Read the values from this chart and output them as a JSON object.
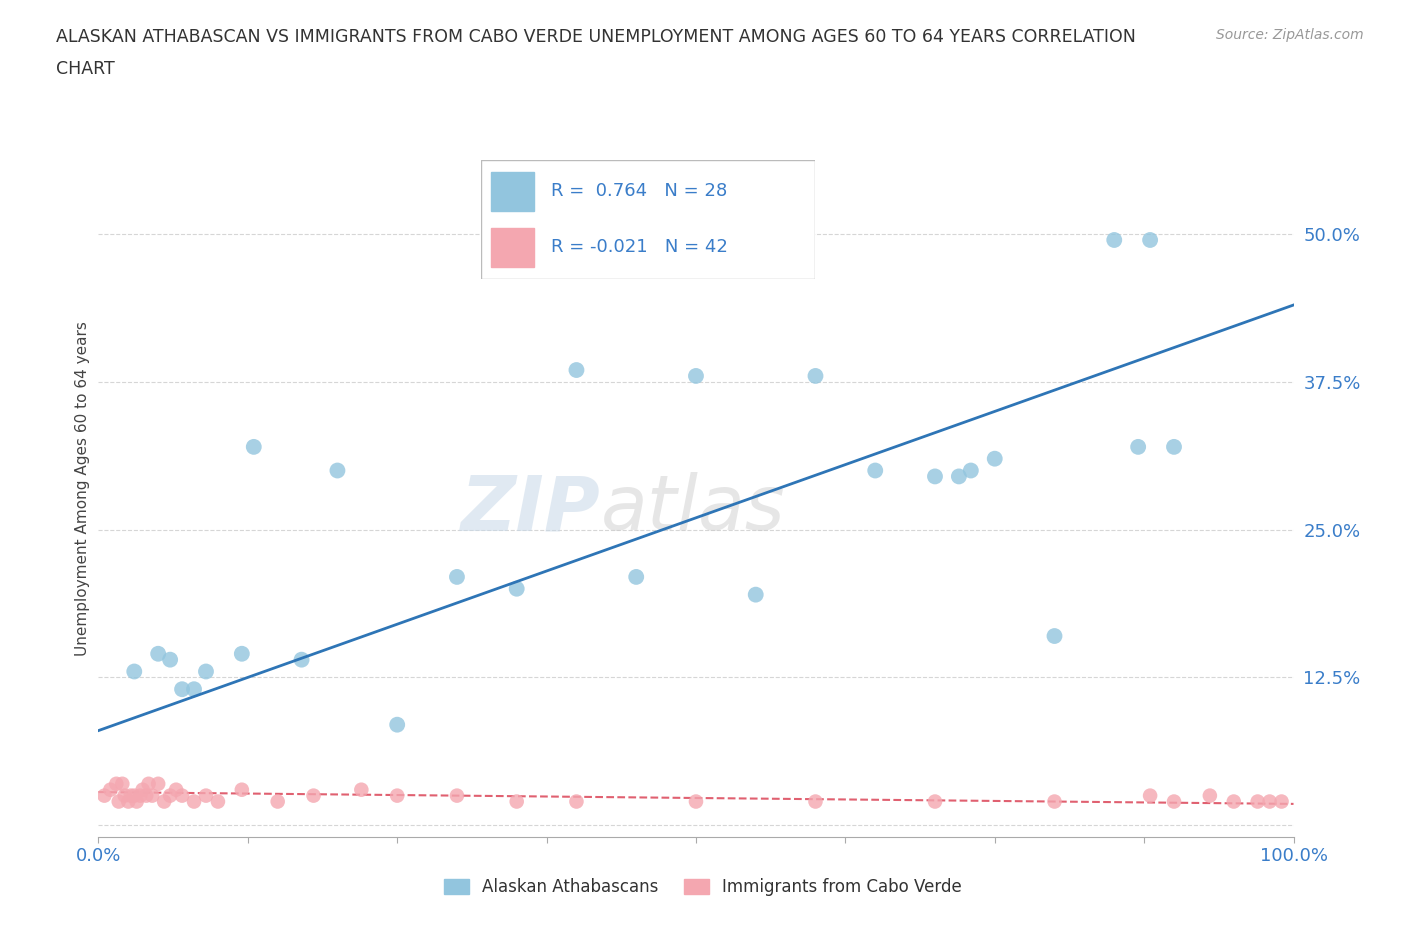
{
  "title_line1": "ALASKAN ATHABASCAN VS IMMIGRANTS FROM CABO VERDE UNEMPLOYMENT AMONG AGES 60 TO 64 YEARS CORRELATION",
  "title_line2": "CHART",
  "source": "Source: ZipAtlas.com",
  "ylabel": "Unemployment Among Ages 60 to 64 years",
  "xlim": [
    0.0,
    1.0
  ],
  "ylim": [
    -0.01,
    0.58
  ],
  "xticks": [
    0.0,
    0.125,
    0.25,
    0.375,
    0.5,
    0.625,
    0.75,
    0.875,
    1.0
  ],
  "yticks": [
    0.0,
    0.125,
    0.25,
    0.375,
    0.5
  ],
  "yticklabels": [
    "",
    "12.5%",
    "25.0%",
    "37.5%",
    "50.0%"
  ],
  "blue_color": "#92C5DE",
  "pink_color": "#F4A7B0",
  "trend_blue": "#2E75B6",
  "trend_pink": "#E06070",
  "watermark_zip": "ZIP",
  "watermark_atlas": "atlas",
  "legend_R1": "R =  0.764   N = 28",
  "legend_R2": "R = -0.021   N = 42",
  "label1": "Alaskan Athabascans",
  "label2": "Immigrants from Cabo Verde",
  "blue_trend_x0": 0.0,
  "blue_trend_y0": 0.08,
  "blue_trend_x1": 1.0,
  "blue_trend_y1": 0.44,
  "pink_trend_x0": 0.0,
  "pink_trend_y0": 0.028,
  "pink_trend_x1": 1.0,
  "pink_trend_y1": 0.018,
  "blue_x": [
    0.03,
    0.05,
    0.06,
    0.07,
    0.08,
    0.09,
    0.12,
    0.13,
    0.17,
    0.2,
    0.25,
    0.3,
    0.35,
    0.4,
    0.45,
    0.5,
    0.55,
    0.6,
    0.65,
    0.7,
    0.72,
    0.73,
    0.75,
    0.8,
    0.85,
    0.87,
    0.88,
    0.9
  ],
  "blue_y": [
    0.13,
    0.145,
    0.14,
    0.115,
    0.115,
    0.13,
    0.145,
    0.32,
    0.14,
    0.3,
    0.085,
    0.21,
    0.2,
    0.385,
    0.21,
    0.38,
    0.195,
    0.38,
    0.3,
    0.295,
    0.295,
    0.3,
    0.31,
    0.16,
    0.495,
    0.32,
    0.495,
    0.32
  ],
  "pink_x": [
    0.005,
    0.01,
    0.015,
    0.017,
    0.02,
    0.022,
    0.025,
    0.027,
    0.03,
    0.032,
    0.035,
    0.037,
    0.04,
    0.042,
    0.045,
    0.05,
    0.055,
    0.06,
    0.065,
    0.07,
    0.08,
    0.09,
    0.1,
    0.12,
    0.15,
    0.18,
    0.22,
    0.25,
    0.3,
    0.35,
    0.4,
    0.5,
    0.6,
    0.7,
    0.8,
    0.88,
    0.9,
    0.93,
    0.95,
    0.97,
    0.98,
    0.99
  ],
  "pink_y": [
    0.025,
    0.03,
    0.035,
    0.02,
    0.035,
    0.025,
    0.02,
    0.025,
    0.025,
    0.02,
    0.025,
    0.03,
    0.025,
    0.035,
    0.025,
    0.035,
    0.02,
    0.025,
    0.03,
    0.025,
    0.02,
    0.025,
    0.02,
    0.03,
    0.02,
    0.025,
    0.03,
    0.025,
    0.025,
    0.02,
    0.02,
    0.02,
    0.02,
    0.02,
    0.02,
    0.025,
    0.02,
    0.025,
    0.02,
    0.02,
    0.02,
    0.02
  ]
}
